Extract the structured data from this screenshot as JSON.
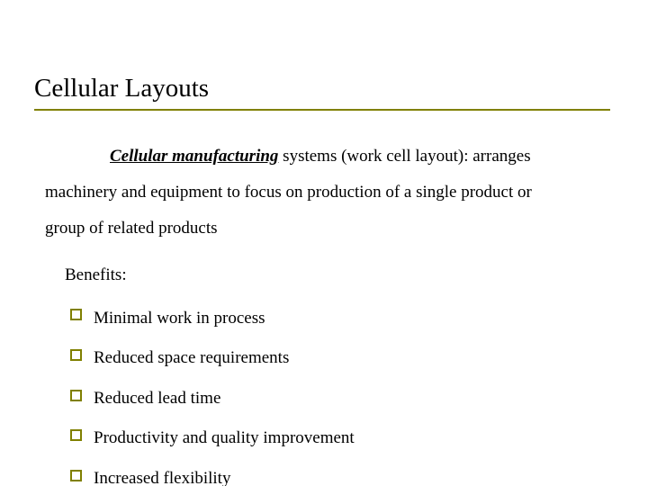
{
  "colors": {
    "accent": "#808000",
    "text": "#000000",
    "background": "#ffffff"
  },
  "typography": {
    "title_fontsize_pt": 22,
    "body_fontsize_pt": 14,
    "font_family": "Times New Roman"
  },
  "title": "Cellular Layouts",
  "definition": {
    "strong": "Cellular manufacturing",
    "rest_first": " systems (work cell layout): arranges",
    "line2": "machinery and equipment to focus on production of a single product or",
    "line3": "group of related products"
  },
  "benefits_label": "Benefits:",
  "benefits": [
    "Minimal work in process",
    "Reduced space requirements",
    "Reduced lead time",
    "Productivity and quality improvement",
    "Increased flexibility"
  ]
}
